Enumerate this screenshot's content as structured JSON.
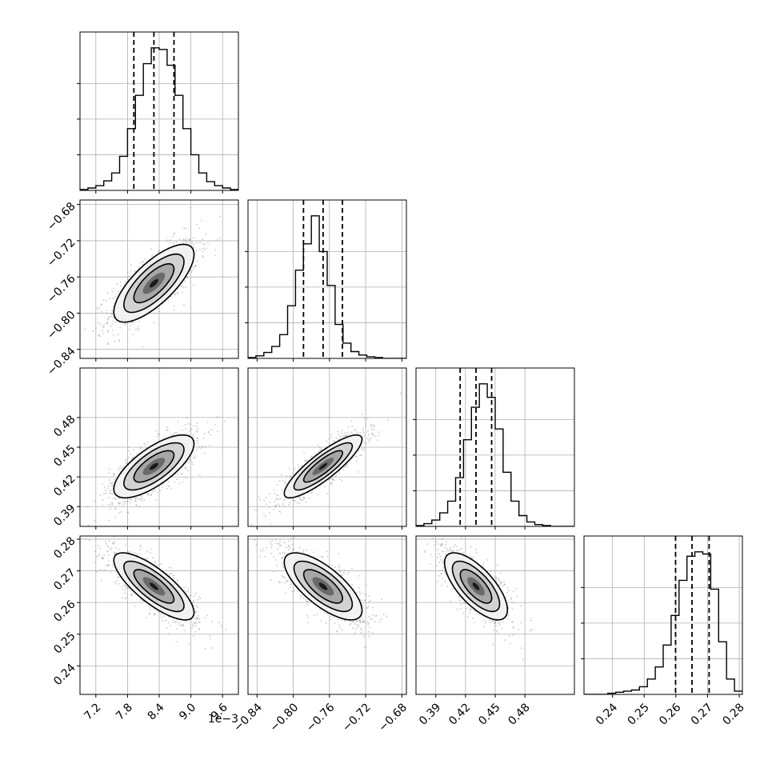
{
  "chart_data": {
    "type": "scatter",
    "kind": "corner-plot",
    "n_params": 4,
    "grid": true,
    "hist_color": "#000000",
    "point_color": "#7f7f7f",
    "quantile_line_style": "dashed",
    "params": [
      {
        "range": [
          6.9,
          9.9
        ],
        "ticks": [
          7.2,
          7.8,
          8.4,
          9.0,
          9.6
        ],
        "tick_labels": [
          "7.2",
          "7.8",
          "8.4",
          "9.0",
          "9.6"
        ],
        "offset_label": "1e−3",
        "quantiles": [
          7.92,
          8.3,
          8.68
        ],
        "hist_counts": [
          1,
          3,
          6,
          12,
          22,
          43,
          78,
          120,
          160,
          180,
          178,
          158,
          120,
          78,
          45,
          22,
          11,
          6,
          3,
          1
        ]
      },
      {
        "range": [
          -0.85,
          -0.675
        ],
        "ticks": [
          -0.84,
          -0.8,
          -0.76,
          -0.72,
          -0.68
        ],
        "tick_labels": [
          "−0.84",
          "−0.80",
          "−0.76",
          "−0.72",
          "−0.68"
        ],
        "quantiles": [
          -0.7887,
          -0.767,
          -0.7457
        ],
        "hist_counts": [
          1,
          3,
          7,
          14,
          28,
          62,
          104,
          135,
          168,
          126,
          86,
          40,
          18,
          8,
          4,
          2,
          1,
          0,
          0,
          0
        ]
      },
      {
        "range": [
          0.37,
          0.53
        ],
        "ticks": [
          0.39,
          0.42,
          0.45,
          0.48
        ],
        "tick_labels": [
          "0.39",
          "0.42",
          "0.45",
          "0.48"
        ],
        "quantiles": [
          0.4146,
          0.4306,
          0.4464
        ],
        "hist_counts": [
          1,
          3,
          7,
          15,
          28,
          54,
          96,
          132,
          158,
          143,
          108,
          60,
          28,
          12,
          5,
          2,
          1,
          0,
          0,
          0
        ]
      },
      {
        "range": [
          0.231,
          0.281
        ],
        "ticks": [
          0.24,
          0.25,
          0.26,
          0.27,
          0.28
        ],
        "tick_labels": [
          "0.24",
          "0.25",
          "0.26",
          "0.27",
          "0.28"
        ],
        "quantiles": [
          0.2599,
          0.2651,
          0.2705
        ],
        "hist_counts": [
          0,
          0,
          0,
          1,
          2,
          3,
          4,
          7,
          14,
          25,
          45,
          72,
          104,
          126,
          130,
          128,
          96,
          48,
          14,
          3
        ]
      }
    ],
    "correlations": [
      [
        1,
        0.74,
        0.72,
        -0.78
      ],
      [
        0.74,
        1,
        0.86,
        -0.72
      ],
      [
        0.72,
        0.86,
        1,
        -0.7
      ],
      [
        -0.78,
        -0.72,
        -0.7,
        1
      ]
    ]
  }
}
